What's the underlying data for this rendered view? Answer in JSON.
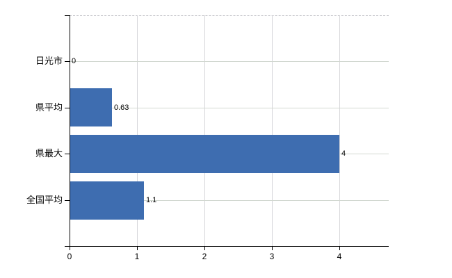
{
  "chart_data": {
    "type": "bar",
    "orientation": "horizontal",
    "title": "",
    "categories": [
      "日光市",
      "県平均",
      "県最大",
      "全国平均"
    ],
    "values": [
      0,
      0.63,
      4,
      1.1
    ],
    "value_labels": [
      "0",
      "0.63",
      "4",
      "1.1"
    ],
    "x_tick_labels": [
      "0",
      "1",
      "2",
      "3",
      "4"
    ],
    "x_tick_values": [
      0,
      1,
      2,
      3,
      4
    ],
    "xlim": [
      0,
      4.73
    ],
    "xlabel": "",
    "ylabel": "",
    "grid": true,
    "legend": false,
    "colors": {
      "bar": "#3e6db0",
      "axis": "#000000",
      "gridline_h": "#d2d8d0",
      "gridline_v": "#d6d6da",
      "plot_top_border": "#c4c4ca",
      "background": "#ffffff",
      "text": "#000000"
    }
  }
}
